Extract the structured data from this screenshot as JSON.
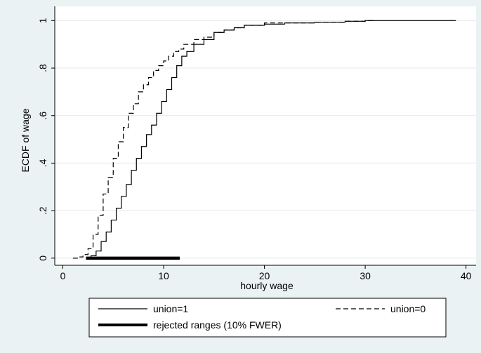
{
  "chart_data": {
    "type": "line",
    "title": "",
    "xlabel": "hourly wage",
    "ylabel": "ECDF of wage",
    "xlim": [
      0,
      40
    ],
    "ylim": [
      0,
      1
    ],
    "xticks": [
      0,
      10,
      20,
      30,
      40
    ],
    "xtick_labels": [
      "0",
      "10",
      "20",
      "30",
      "40"
    ],
    "yticks": [
      0,
      0.2,
      0.4,
      0.6,
      0.8,
      1
    ],
    "ytick_labels": [
      "0",
      ".2",
      ".4",
      ".6",
      ".8",
      "1"
    ],
    "grid": "horizontal",
    "legend_position": "bottom",
    "series": [
      {
        "name": "union=1",
        "style": "solid",
        "color": "#000000",
        "x": [
          2.3,
          2.8,
          3.3,
          3.8,
          4.3,
          4.8,
          5.3,
          5.8,
          6.3,
          6.8,
          7.3,
          7.8,
          8.3,
          8.8,
          9.3,
          9.8,
          10.3,
          10.8,
          11.3,
          11.8,
          12.3,
          13.0,
          14.0,
          15.0,
          16.0,
          17.0,
          18.0,
          20.0,
          22.0,
          25.0,
          28.0,
          30.0,
          35.0,
          39.0
        ],
        "y": [
          0.0,
          0.01,
          0.03,
          0.07,
          0.11,
          0.16,
          0.21,
          0.26,
          0.31,
          0.37,
          0.42,
          0.47,
          0.52,
          0.56,
          0.61,
          0.66,
          0.71,
          0.76,
          0.81,
          0.85,
          0.87,
          0.9,
          0.92,
          0.95,
          0.96,
          0.97,
          0.98,
          0.985,
          0.99,
          0.993,
          0.997,
          1.0,
          1.0,
          1.0
        ]
      },
      {
        "name": "union=0",
        "style": "dashed",
        "color": "#000000",
        "x": [
          1.0,
          1.5,
          2.0,
          2.5,
          3.0,
          3.5,
          4.0,
          4.5,
          5.0,
          5.5,
          6.0,
          6.5,
          7.0,
          7.5,
          8.0,
          8.5,
          9.0,
          9.5,
          10.0,
          10.5,
          11.0,
          11.5,
          12.0,
          13.0,
          14.0,
          15.0,
          16.0,
          17.0,
          18.0,
          20.0,
          22.0,
          25.0,
          28.0,
          30.0,
          31.0
        ],
        "y": [
          0.0,
          0.005,
          0.015,
          0.04,
          0.1,
          0.18,
          0.27,
          0.34,
          0.42,
          0.49,
          0.55,
          0.61,
          0.65,
          0.7,
          0.73,
          0.76,
          0.79,
          0.81,
          0.83,
          0.85,
          0.87,
          0.88,
          0.9,
          0.92,
          0.93,
          0.95,
          0.96,
          0.97,
          0.98,
          0.99,
          0.99,
          0.993,
          0.997,
          1.0,
          1.0
        ]
      },
      {
        "name": "rejected ranges (10% FWER)",
        "style": "thick",
        "color": "#000000",
        "x": [
          2.3,
          11.6
        ],
        "y": [
          0,
          0
        ]
      }
    ]
  }
}
